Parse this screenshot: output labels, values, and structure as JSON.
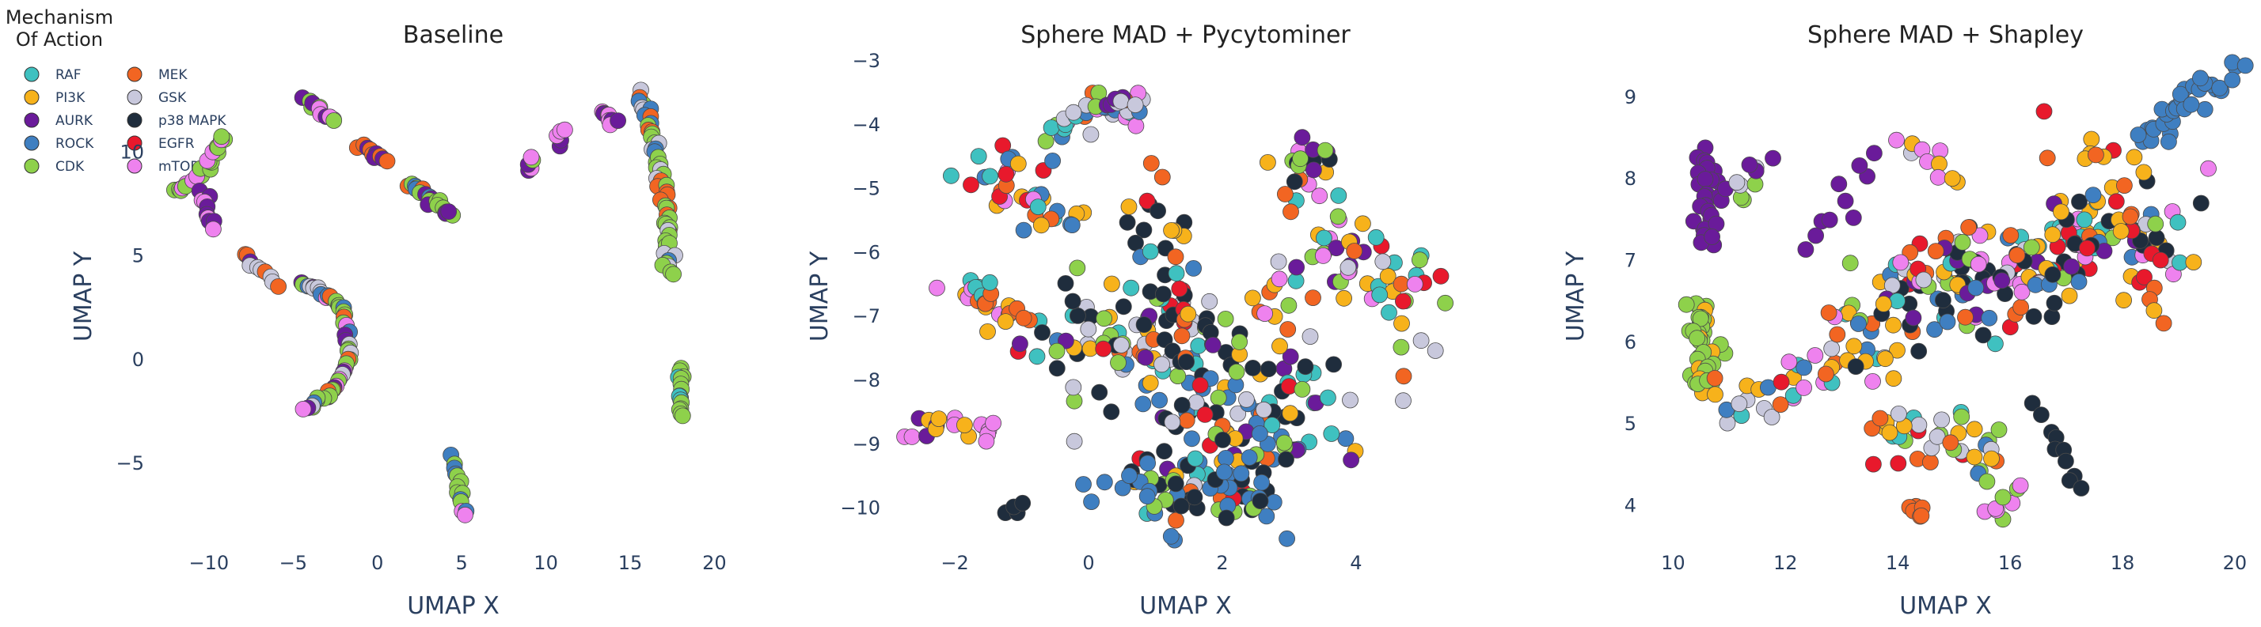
{
  "legend": {
    "title_line1": "Mechanism",
    "title_line2": "Of Action",
    "items": [
      {
        "label": "RAF",
        "color": "#3fc1c0",
        "column": 0
      },
      {
        "label": "PI3K",
        "color": "#f7b21b",
        "column": 0
      },
      {
        "label": "AURK",
        "color": "#6a1b9a",
        "column": 0
      },
      {
        "label": "ROCK",
        "color": "#3f7fc1",
        "column": 0
      },
      {
        "label": "CDK",
        "color": "#8ed14b",
        "column": 0
      },
      {
        "label": "MEK",
        "color": "#f26522",
        "column": 1
      },
      {
        "label": "GSK",
        "color": "#c8c8dc",
        "column": 1
      },
      {
        "label": "p38 MAPK",
        "color": "#1f2d3d",
        "column": 1
      },
      {
        "label": "EGFR",
        "color": "#e8192c",
        "column": 1
      },
      {
        "label": "mTOR",
        "color": "#ee82ee",
        "column": 1
      }
    ]
  },
  "chart_data": [
    {
      "type": "scatter",
      "title": "Baseline",
      "xlabel": "UMAP X",
      "ylabel": "UMAP Y",
      "xlim": [
        -13,
        22
      ],
      "ylim": [
        -9,
        15
      ],
      "xticks": [
        -10,
        -5,
        0,
        5,
        10,
        15,
        20
      ],
      "yticks": [
        -5,
        0,
        5,
        10
      ],
      "seed": 11,
      "clusters": [
        {
          "path": [
            [
              -12,
              8
            ],
            [
              -10.5,
              8.8
            ],
            [
              -9,
              10.8
            ]
          ],
          "n": 22,
          "spread": 0.15,
          "colors": [
            "CDK",
            "mTOR",
            "CDK",
            "CDK"
          ]
        },
        {
          "path": [
            [
              -10.5,
              8
            ],
            [
              -9.6,
              6.3
            ]
          ],
          "n": 10,
          "spread": 0.15,
          "colors": [
            "mTOR",
            "AURK"
          ]
        },
        {
          "path": [
            [
              -4.5,
              12.5
            ],
            [
              -2.5,
              11.5
            ]
          ],
          "n": 12,
          "spread": 0.15,
          "colors": [
            "CDK",
            "CDK",
            "mTOR",
            "AURK"
          ]
        },
        {
          "path": [
            [
              -8,
              5
            ],
            [
              -6,
              3.7
            ]
          ],
          "n": 10,
          "spread": 0.15,
          "colors": [
            "AURK",
            "GSK",
            "MEK"
          ]
        },
        {
          "path": [
            [
              -4.5,
              3.7
            ],
            [
              -2,
              2.5
            ],
            [
              -1.6,
              0
            ],
            [
              -2.5,
              -1.5
            ],
            [
              -4.3,
              -2.4
            ]
          ],
          "n": 55,
          "spread": 0.12,
          "colors": [
            "CDK",
            "ROCK",
            "GSK",
            "MEK",
            "CDK",
            "mTOR",
            "AURK"
          ]
        },
        {
          "path": [
            [
              -1,
              10.2
            ],
            [
              0.5,
              9.6
            ]
          ],
          "n": 10,
          "spread": 0.12,
          "colors": [
            "MEK",
            "MEK",
            "AURK"
          ]
        },
        {
          "path": [
            [
              2,
              8.5
            ],
            [
              3.5,
              7.5
            ],
            [
              4.3,
              6.9
            ]
          ],
          "n": 22,
          "spread": 0.15,
          "colors": [
            "ROCK",
            "CDK",
            "MEK",
            "CDK",
            "AURK"
          ]
        },
        {
          "path": [
            [
              4.5,
              -4.8
            ],
            [
              5.3,
              -7.6
            ]
          ],
          "n": 14,
          "spread": 0.12,
          "colors": [
            "mTOR",
            "CDK",
            "ROCK",
            "CDK"
          ]
        },
        {
          "path": [
            [
              9,
              9
            ],
            [
              9.2,
              9.8
            ]
          ],
          "n": 5,
          "spread": 0.1,
          "colors": [
            "mTOR",
            "CDK",
            "AURK"
          ]
        },
        {
          "path": [
            [
              10.8,
              10.4
            ],
            [
              11,
              11
            ]
          ],
          "n": 5,
          "spread": 0.1,
          "colors": [
            "AURK",
            "mTOR"
          ]
        },
        {
          "path": [
            [
              13.3,
              12
            ],
            [
              14.2,
              11.3
            ]
          ],
          "n": 9,
          "spread": 0.1,
          "colors": [
            "mTOR",
            "mTOR",
            "AURK"
          ]
        },
        {
          "path": [
            [
              15.5,
              12.8
            ],
            [
              16.6,
              10
            ],
            [
              17.2,
              7
            ],
            [
              17.3,
              4
            ]
          ],
          "n": 55,
          "spread": 0.15,
          "colors": [
            "CDK",
            "MEK",
            "GSK",
            "CDK",
            "ROCK",
            "MEK",
            "CDK"
          ]
        },
        {
          "path": [
            [
              18,
              -0.5
            ],
            [
              18,
              -2.8
            ]
          ],
          "n": 16,
          "spread": 0.1,
          "colors": [
            "CDK",
            "CDK",
            "RAF"
          ]
        }
      ]
    },
    {
      "type": "scatter",
      "title": "Sphere MAD + Pycytominer",
      "xlabel": "UMAP X",
      "ylabel": "UMAP Y",
      "xlim": [
        -2.9,
        5.8
      ],
      "ylim": [
        -10.6,
        -2.8
      ],
      "xticks": [
        -2,
        0,
        2,
        4
      ],
      "yticks": [
        -10,
        -9,
        -8,
        -7,
        -6,
        -5,
        -4,
        -3
      ],
      "seed": 22,
      "clusters": [
        {
          "path": [
            [
              -0.6,
              -4.2
            ],
            [
              0.1,
              -3.75
            ],
            [
              0.8,
              -3.85
            ]
          ],
          "n": 30,
          "spread": 0.15,
          "colors": [
            "CDK",
            "MEK",
            "GSK",
            "mTOR",
            "RAF",
            "ROCK"
          ]
        },
        {
          "path": [
            [
              -1.5,
              -4.5
            ],
            [
              -1,
              -5
            ],
            [
              -0.5,
              -5.6
            ]
          ],
          "n": 35,
          "spread": 0.25,
          "colors": [
            "EGFR",
            "MEK",
            "RAF",
            "PI3K",
            "mTOR",
            "ROCK"
          ]
        },
        {
          "path": [
            [
              0,
              -3.7
            ],
            [
              0.5,
              -3.6
            ]
          ],
          "n": 10,
          "spread": 0.1,
          "colors": [
            "AURK",
            "GSK",
            "CDK"
          ]
        },
        {
          "path": [
            [
              1,
              -4.8
            ],
            [
              1.2,
              -6.5
            ],
            [
              0.8,
              -8
            ]
          ],
          "n": 40,
          "spread": 0.3,
          "colors": [
            "MEK",
            "RAF",
            "PI3K",
            "p38 MAPK",
            "EGFR",
            "GSK",
            "ROCK"
          ]
        },
        {
          "path": [
            [
              -2.0,
              -6.5
            ],
            [
              -1.0,
              -7.0
            ]
          ],
          "n": 22,
          "spread": 0.15,
          "colors": [
            "PI3K",
            "mTOR",
            "MEK",
            "RAF"
          ]
        },
        {
          "path": [
            [
              -2.7,
              -8.7
            ],
            [
              -2.0,
              -8.8
            ],
            [
              -1.3,
              -8.8
            ]
          ],
          "n": 18,
          "spread": 0.1,
          "colors": [
            "mTOR",
            "PI3K",
            "AURK",
            "mTOR"
          ]
        },
        {
          "path": [
            [
              -1.3,
              -10.1
            ],
            [
              -1.0,
              -9.95
            ]
          ],
          "n": 5,
          "spread": 0.05,
          "colors": [
            "p38 MAPK"
          ]
        },
        {
          "path": [
            [
              -0.5,
              -7.0
            ],
            [
              1.5,
              -7.8
            ],
            [
              3,
              -8.5
            ],
            [
              1.2,
              -9.8
            ]
          ],
          "n": 200,
          "spread": 0.55,
          "colors": [
            "p38 MAPK",
            "p38 MAPK",
            "p38 MAPK",
            "EGFR",
            "ROCK",
            "PI3K",
            "CDK",
            "RAF",
            "MEK",
            "GSK",
            "AURK"
          ]
        },
        {
          "path": [
            [
              0.5,
              -9.5
            ],
            [
              1.8,
              -10
            ],
            [
              2.8,
              -9.2
            ]
          ],
          "n": 50,
          "spread": 0.35,
          "colors": [
            "ROCK",
            "ROCK",
            "ROCK",
            "p38 MAPK",
            "CDK"
          ]
        },
        {
          "path": [
            [
              2.5,
              -7.3
            ],
            [
              3.5,
              -6
            ],
            [
              3.3,
              -4.5
            ]
          ],
          "n": 40,
          "spread": 0.3,
          "colors": [
            "RAF",
            "CDK",
            "PI3K",
            "MEK",
            "mTOR",
            "AURK",
            "GSK"
          ]
        },
        {
          "path": [
            [
              3.8,
              -6
            ],
            [
              4.7,
              -6.5
            ],
            [
              4.8,
              -7.3
            ]
          ],
          "n": 35,
          "spread": 0.3,
          "colors": [
            "MEK",
            "PI3K",
            "RAF",
            "EGFR",
            "mTOR",
            "GSK",
            "CDK"
          ]
        },
        {
          "path": [
            [
              3.0,
              -4.8
            ],
            [
              3.6,
              -4.4
            ]
          ],
          "n": 12,
          "spread": 0.15,
          "colors": [
            "CDK",
            "AURK",
            "p38 MAPK"
          ]
        }
      ]
    },
    {
      "type": "scatter",
      "title": "Sphere MAD + Shapley",
      "xlabel": "UMAP X",
      "ylabel": "UMAP Y",
      "xlim": [
        9.6,
        20.1
      ],
      "ylim": [
        3.5,
        9.6
      ],
      "xticks": [
        10,
        12,
        14,
        16,
        18,
        20
      ],
      "yticks": [
        4,
        5,
        6,
        7,
        8,
        9
      ],
      "seed": 33,
      "clusters": [
        {
          "path": [
            [
              10.6,
              8.3
            ],
            [
              10.6,
              7.2
            ]
          ],
          "n": 30,
          "spread": 0.12,
          "colors": [
            "AURK"
          ]
        },
        {
          "path": [
            [
              10.5,
              6.5
            ],
            [
              10.6,
              5.4
            ]
          ],
          "n": 40,
          "spread": 0.15,
          "colors": [
            "CDK",
            "CDK",
            "CDK",
            "PI3K"
          ]
        },
        {
          "path": [
            [
              11,
              7.8
            ],
            [
              11.7,
              8.2
            ]
          ],
          "n": 10,
          "spread": 0.15,
          "colors": [
            "GSK",
            "CDK",
            "AURK"
          ]
        },
        {
          "path": [
            [
              12.3,
              7.3
            ],
            [
              13,
              7.5
            ],
            [
              13.5,
              8.3
            ]
          ],
          "n": 10,
          "spread": 0.15,
          "colors": [
            "AURK"
          ]
        },
        {
          "path": [
            [
              11,
              5.3
            ],
            [
              12.5,
              5.6
            ],
            [
              14,
              6
            ]
          ],
          "n": 40,
          "spread": 0.35,
          "colors": [
            "EGFR",
            "GSK",
            "mTOR",
            "PI3K",
            "MEK",
            "RAF",
            "ROCK"
          ]
        },
        {
          "path": [
            [
              14,
              8.5
            ],
            [
              15,
              8
            ]
          ],
          "n": 10,
          "spread": 0.15,
          "colors": [
            "mTOR",
            "PI3K",
            "GSK"
          ]
        },
        {
          "path": [
            [
              13.5,
              6.5
            ],
            [
              15.5,
              6.8
            ],
            [
              17.5,
              7.2
            ],
            [
              18.5,
              7.5
            ]
          ],
          "n": 200,
          "spread": 0.55,
          "colors": [
            "p38 MAPK",
            "p38 MAPK",
            "p38 MAPK",
            "PI3K",
            "PI3K",
            "RAF",
            "EGFR",
            "MEK",
            "CDK",
            "GSK",
            "ROCK",
            "mTOR",
            "AURK"
          ]
        },
        {
          "path": [
            [
              13.5,
              5
            ],
            [
              15,
              4.8
            ],
            [
              16,
              4.5
            ]
          ],
          "n": 40,
          "spread": 0.35,
          "colors": [
            "PI3K",
            "RAF",
            "MEK",
            "EGFR",
            "ROCK",
            "GSK",
            "CDK"
          ]
        },
        {
          "path": [
            [
              14.2,
              4
            ],
            [
              14.5,
              3.9
            ]
          ],
          "n": 6,
          "spread": 0.1,
          "colors": [
            "MEK"
          ]
        },
        {
          "path": [
            [
              15.5,
              3.8
            ],
            [
              16,
              4.2
            ]
          ],
          "n": 8,
          "spread": 0.12,
          "colors": [
            "mTOR",
            "CDK"
          ]
        },
        {
          "path": [
            [
              16.5,
              5.2
            ],
            [
              17.3,
              4.2
            ]
          ],
          "n": 10,
          "spread": 0.08,
          "colors": [
            "p38 MAPK"
          ]
        },
        {
          "path": [
            [
              18.3,
              8.5
            ],
            [
              19.2,
              9
            ],
            [
              20,
              9.3
            ]
          ],
          "n": 35,
          "spread": 0.18,
          "colors": [
            "ROCK"
          ]
        },
        {
          "path": [
            [
              17,
              8.4
            ],
            [
              18,
              8.2
            ],
            [
              18.5,
              6.3
            ]
          ],
          "n": 25,
          "spread": 0.25,
          "colors": [
            "EGFR",
            "MEK",
            "PI3K"
          ]
        }
      ]
    }
  ]
}
